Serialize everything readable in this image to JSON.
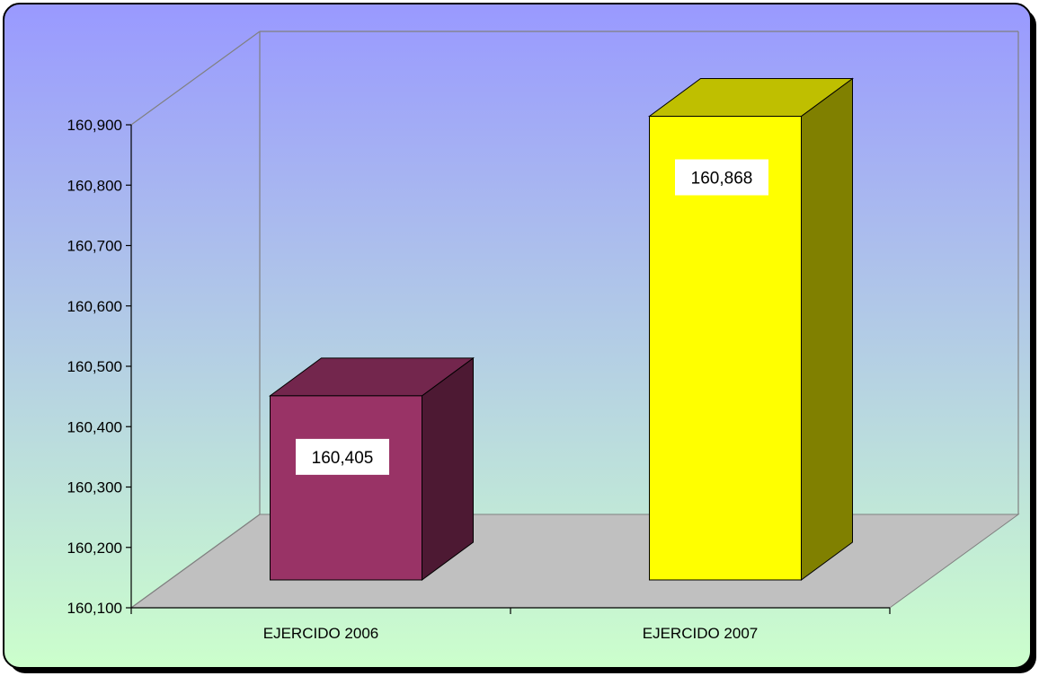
{
  "chart_data": {
    "type": "bar",
    "style": "3d-column",
    "categories": [
      "EJERCIDO 2006",
      "EJERCIDO 2007"
    ],
    "values": [
      160405,
      160868
    ],
    "data_labels": [
      "160,405",
      "160,868"
    ],
    "ylim": [
      160100,
      160900
    ],
    "yticks": [
      160100,
      160200,
      160300,
      160400,
      160500,
      160600,
      160700,
      160800,
      160900
    ],
    "ytick_labels": [
      "160,100",
      "160,200",
      "160,300",
      "160,400",
      "160,500",
      "160,600",
      "160,700",
      "160,800",
      "160,900"
    ],
    "title": "",
    "xlabel": "",
    "ylabel": "",
    "legend": "none",
    "grid": false,
    "colors": {
      "bar_2006": {
        "front": "#993366",
        "top": "#73264d",
        "side": "#4d1933"
      },
      "bar_2007": {
        "front": "#ffff00",
        "top": "#bfbf00",
        "side": "#808000"
      },
      "floor": "#c0c0c0",
      "background_top": "#9999ff",
      "background_bottom": "#ccffcc"
    }
  }
}
